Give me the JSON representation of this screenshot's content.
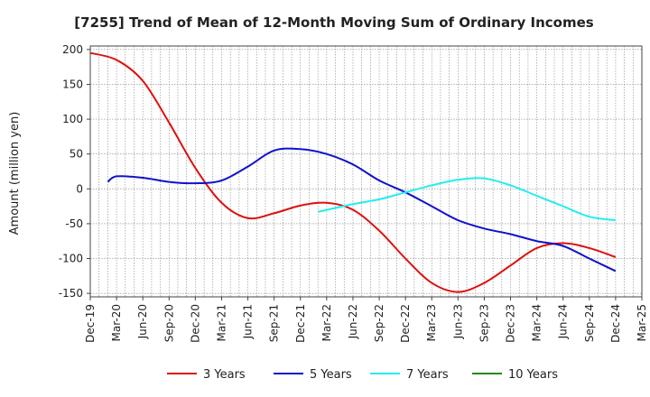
{
  "chart_data": {
    "type": "line",
    "title": "[7255]  Trend of Mean of 12-Month Moving Sum of Ordinary Incomes",
    "ylabel": "Amount (million yen)",
    "xlabel": "",
    "ylim": [
      -155,
      205
    ],
    "yticks": [
      200,
      150,
      100,
      50,
      0,
      -50,
      -100,
      -150
    ],
    "x_tick_labels": [
      "Dec-19",
      "Mar-20",
      "Jun-20",
      "Sep-20",
      "Dec-20",
      "Mar-21",
      "Jun-21",
      "Sep-21",
      "Dec-21",
      "Mar-22",
      "Jun-22",
      "Sep-22",
      "Dec-22",
      "Mar-23",
      "Jun-23",
      "Sep-23",
      "Dec-23",
      "Mar-24",
      "Jun-24",
      "Sep-24",
      "Dec-24",
      "Mar-25"
    ],
    "grid": true,
    "legend_position": "bottom",
    "series": [
      {
        "name": "3 Years",
        "color": "#dd1111",
        "points": [
          [
            0,
            195
          ],
          [
            1,
            185
          ],
          [
            2,
            155
          ],
          [
            3,
            95
          ],
          [
            4,
            30
          ],
          [
            5,
            -20
          ],
          [
            6,
            -42
          ],
          [
            7,
            -35
          ],
          [
            8,
            -24
          ],
          [
            9,
            -20
          ],
          [
            10,
            -30
          ],
          [
            11,
            -60
          ],
          [
            12,
            -100
          ],
          [
            13,
            -135
          ],
          [
            14,
            -148
          ],
          [
            15,
            -135
          ],
          [
            16,
            -110
          ],
          [
            17,
            -85
          ],
          [
            18,
            -78
          ],
          [
            19,
            -85
          ],
          [
            20,
            -98
          ]
        ]
      },
      {
        "name": "5 Years",
        "color": "#1111cc",
        "points": [
          [
            0.67,
            10
          ],
          [
            1,
            18
          ],
          [
            2,
            16
          ],
          [
            3,
            10
          ],
          [
            4,
            8
          ],
          [
            5,
            12
          ],
          [
            6,
            32
          ],
          [
            7,
            55
          ],
          [
            8,
            57
          ],
          [
            9,
            50
          ],
          [
            10,
            35
          ],
          [
            11,
            12
          ],
          [
            12,
            -5
          ],
          [
            13,
            -25
          ],
          [
            14,
            -45
          ],
          [
            15,
            -57
          ],
          [
            16,
            -65
          ],
          [
            17,
            -75
          ],
          [
            18,
            -82
          ],
          [
            19,
            -100
          ],
          [
            20,
            -118
          ]
        ]
      },
      {
        "name": "7 Years",
        "color": "#22eeee",
        "points": [
          [
            8.67,
            -33
          ],
          [
            10,
            -22
          ],
          [
            11,
            -15
          ],
          [
            12,
            -5
          ],
          [
            13,
            5
          ],
          [
            14,
            13
          ],
          [
            15,
            15
          ],
          [
            16,
            5
          ],
          [
            17,
            -10
          ],
          [
            18,
            -25
          ],
          [
            19,
            -40
          ],
          [
            20,
            -45
          ]
        ]
      },
      {
        "name": "10 Years",
        "color": "#228822",
        "points": []
      }
    ]
  }
}
